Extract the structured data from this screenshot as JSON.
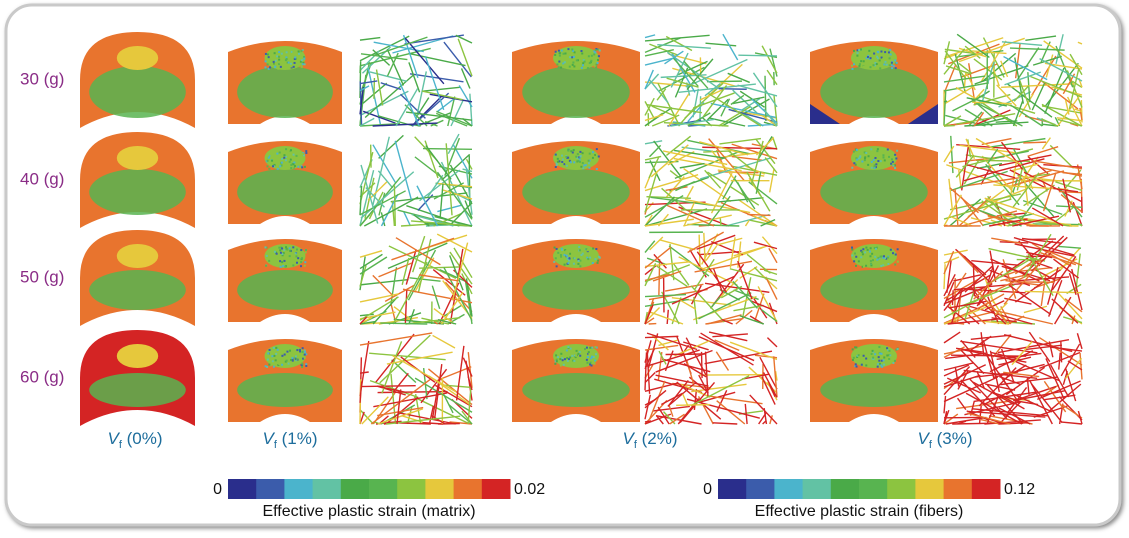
{
  "figure": {
    "row_labels": [
      "30 (g)",
      "40 (g)",
      "50 (g)",
      "60 (g)"
    ],
    "column_labels": [
      {
        "symbol": "V",
        "subscript": "f",
        "suffix": " (0%)"
      },
      {
        "symbol": "V",
        "subscript": "f",
        "suffix": " (1%)"
      },
      {
        "symbol": "V",
        "subscript": "f",
        "suffix": " (2%)"
      },
      {
        "symbol": "V",
        "subscript": "f",
        "suffix": " (3%)"
      }
    ],
    "colorbars": [
      {
        "min_label": "0",
        "max_label": "0.02",
        "caption": "Effective plastic strain (matrix)"
      },
      {
        "min_label": "0",
        "max_label": "0.12",
        "caption": "Effective plastic strain (fibers)"
      }
    ],
    "colorbar_colors": [
      "#2a2e8c",
      "#3b5cab",
      "#4bb4cc",
      "#62c2a4",
      "#4aaa48",
      "#58b450",
      "#8cc440",
      "#e6c83c",
      "#e8742e",
      "#d42424"
    ]
  }
}
